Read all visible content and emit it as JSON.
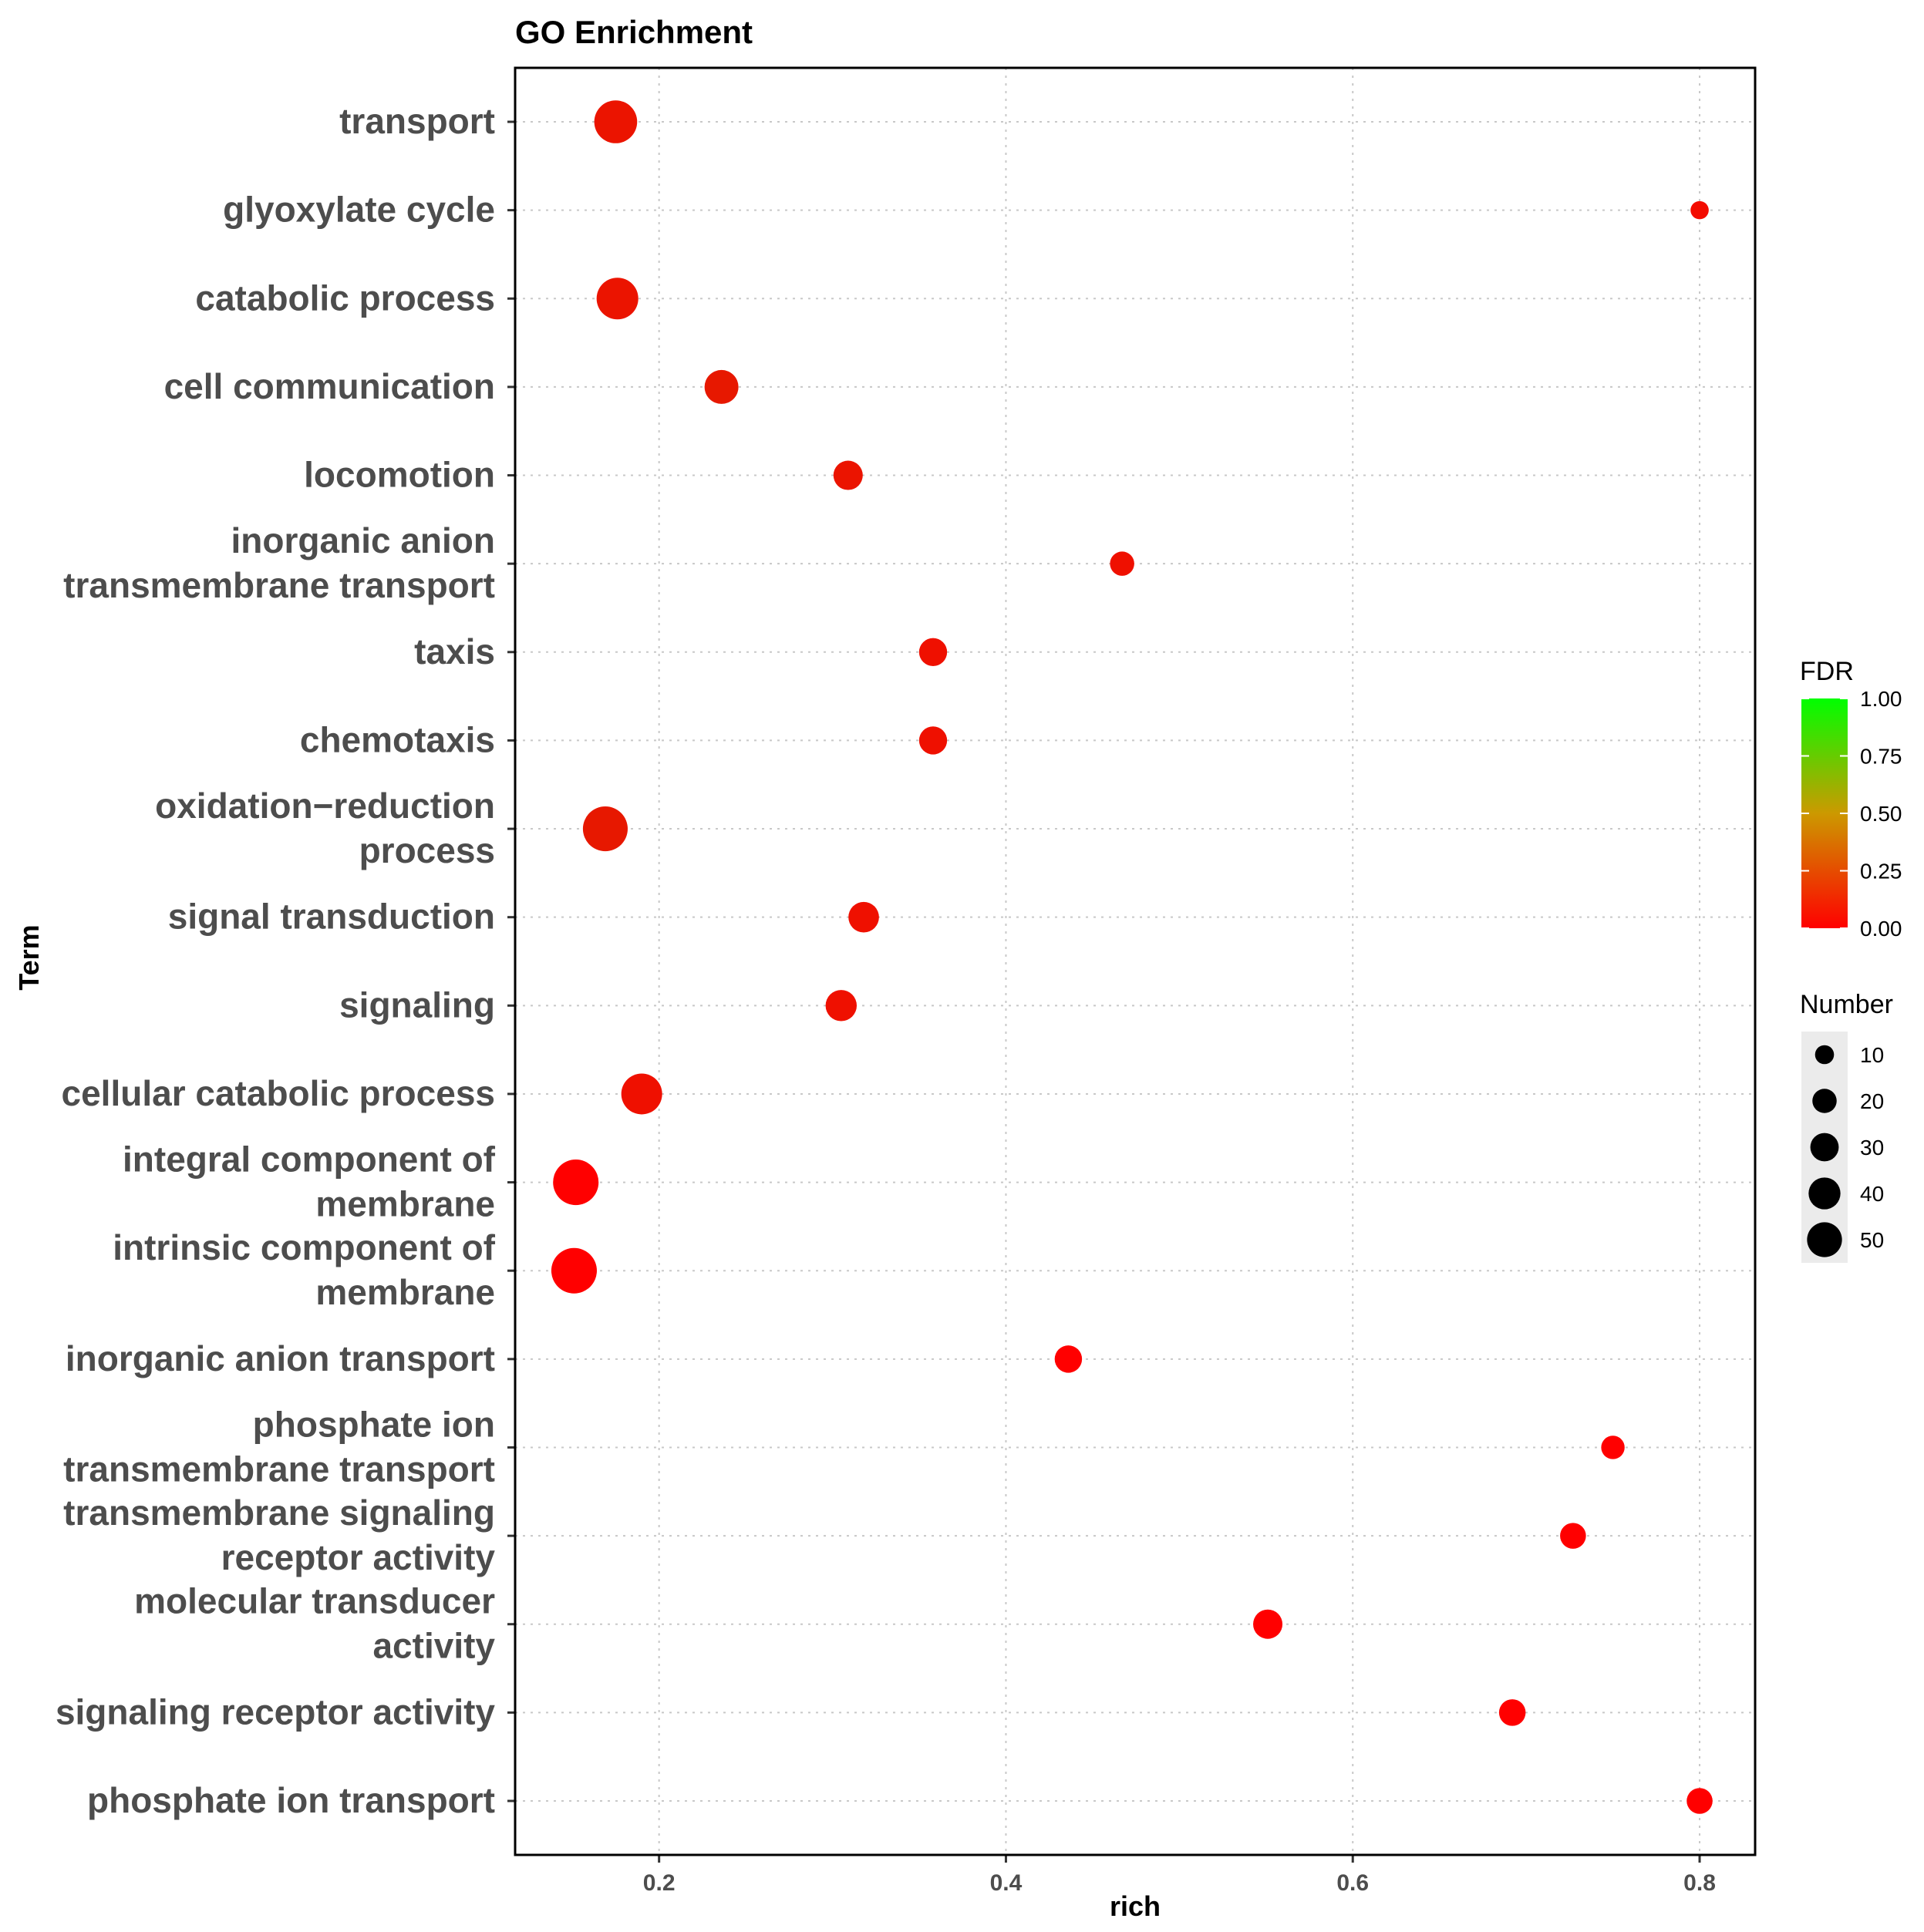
{
  "chart_data": {
    "type": "scatter",
    "title": "GO Enrichment",
    "xlabel": "rich",
    "ylabel": "Term",
    "xlim": [
      0.117,
      0.832
    ],
    "xticks": [
      0.2,
      0.4,
      0.6,
      0.8
    ],
    "xtick_labels": [
      "0.2",
      "0.4",
      "0.6",
      "0.8"
    ],
    "grid": true,
    "points": [
      {
        "term": "transport",
        "label_lines": [
          "transport"
        ],
        "rich": 0.175,
        "number": 45,
        "fdr": 0.05
      },
      {
        "term": "glyoxylate cycle",
        "label_lines": [
          "glyoxylate cycle"
        ],
        "rich": 0.8,
        "number": 4,
        "fdr": 0.03
      },
      {
        "term": "catabolic process",
        "label_lines": [
          "catabolic process"
        ],
        "rich": 0.176,
        "number": 42,
        "fdr": 0.05
      },
      {
        "term": "cell communication",
        "label_lines": [
          "cell communication"
        ],
        "rich": 0.236,
        "number": 25,
        "fdr": 0.06
      },
      {
        "term": "locomotion",
        "label_lines": [
          "locomotion"
        ],
        "rich": 0.309,
        "number": 17,
        "fdr": 0.05
      },
      {
        "term": "inorganic anion transmembrane transport",
        "label_lines": [
          "inorganic anion",
          "transmembrane transport"
        ],
        "rich": 0.467,
        "number": 10,
        "fdr": 0.04
      },
      {
        "term": "taxis",
        "label_lines": [
          "taxis"
        ],
        "rich": 0.358,
        "number": 15,
        "fdr": 0.04
      },
      {
        "term": "chemotaxis",
        "label_lines": [
          "chemotaxis"
        ],
        "rich": 0.358,
        "number": 15,
        "fdr": 0.04
      },
      {
        "term": "oxidation−reduction process",
        "label_lines": [
          "oxidation−reduction",
          "process"
        ],
        "rich": 0.169,
        "number": 50,
        "fdr": 0.06
      },
      {
        "term": "signal transduction",
        "label_lines": [
          "signal transduction"
        ],
        "rich": 0.318,
        "number": 19,
        "fdr": 0.04
      },
      {
        "term": "signaling",
        "label_lines": [
          "signaling"
        ],
        "rich": 0.305,
        "number": 20,
        "fdr": 0.04
      },
      {
        "term": "cellular catabolic process",
        "label_lines": [
          "cellular catabolic process"
        ],
        "rich": 0.19,
        "number": 40,
        "fdr": 0.04
      },
      {
        "term": "integral component of membrane",
        "label_lines": [
          "integral component of",
          "membrane"
        ],
        "rich": 0.152,
        "number": 52,
        "fdr": 0.0
      },
      {
        "term": "intrinsic component of membrane",
        "label_lines": [
          "intrinsic component of",
          "membrane"
        ],
        "rich": 0.151,
        "number": 52,
        "fdr": 0.0
      },
      {
        "term": "inorganic anion transport",
        "label_lines": [
          "inorganic anion transport"
        ],
        "rich": 0.436,
        "number": 14,
        "fdr": 0.01
      },
      {
        "term": "phosphate ion transmembrane transport",
        "label_lines": [
          "phosphate ion",
          "transmembrane transport"
        ],
        "rich": 0.75,
        "number": 9,
        "fdr": 0.01
      },
      {
        "term": "transmembrane signaling receptor activity",
        "label_lines": [
          "transmembrane signaling",
          "receptor activity"
        ],
        "rich": 0.727,
        "number": 12,
        "fdr": 0.01
      },
      {
        "term": "molecular transducer activity",
        "label_lines": [
          "molecular transducer",
          "activity"
        ],
        "rich": 0.551,
        "number": 17,
        "fdr": 0.01
      },
      {
        "term": "signaling receptor activity",
        "label_lines": [
          "signaling receptor activity"
        ],
        "rich": 0.692,
        "number": 13,
        "fdr": 0.01
      },
      {
        "term": "phosphate ion transport",
        "label_lines": [
          "phosphate ion transport"
        ],
        "rich": 0.8,
        "number": 12,
        "fdr": 0.01
      }
    ],
    "color_legend": {
      "title": "FDR",
      "range": [
        0.0,
        1.0
      ],
      "ticks": [
        1.0,
        0.75,
        0.5,
        0.25,
        0.0
      ],
      "tick_labels": [
        "1.00",
        "0.75",
        "0.50",
        "0.25",
        "0.00"
      ],
      "low_color": "#ff0000",
      "high_color": "#00ff00"
    },
    "size_legend": {
      "title": "Number",
      "values": [
        10,
        20,
        30,
        40,
        50
      ],
      "labels": [
        "10",
        "20",
        "30",
        "40",
        "50"
      ]
    }
  }
}
